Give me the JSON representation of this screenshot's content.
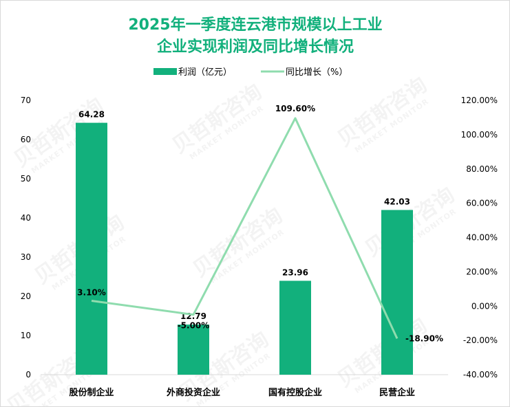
{
  "chart_data": {
    "type": "bar",
    "title_lines": [
      "2025年一季度连云港市规模以上工业",
      "企业实现利润及同比增长情况"
    ],
    "categories": [
      "股份制企业",
      "外商投资企业",
      "国有控股企业",
      "民营企业"
    ],
    "series": [
      {
        "name": "利润（亿元）",
        "type": "bar",
        "axis": "left",
        "values": [
          64.28,
          12.79,
          23.96,
          42.03
        ],
        "labels": [
          "64.28",
          "12.79",
          "23.96",
          "42.03"
        ]
      },
      {
        "name": "同比增长（%）",
        "type": "line",
        "axis": "right",
        "values": [
          3.1,
          -5.0,
          109.6,
          -18.9
        ],
        "labels": [
          "3.10%",
          "-5.00%",
          "109.60%",
          "-18.90%"
        ]
      }
    ],
    "y_left": {
      "min": 0,
      "max": 70,
      "step": 10,
      "ticks": [
        "0",
        "10",
        "20",
        "30",
        "40",
        "50",
        "60",
        "70"
      ]
    },
    "y_right": {
      "min": -40,
      "max": 120,
      "step": 20,
      "ticks": [
        "-40.00%",
        "-20.00%",
        "0.00%",
        "20.00%",
        "40.00%",
        "60.00%",
        "80.00%",
        "100.00%",
        "120.00%"
      ]
    },
    "legend_position": "top",
    "grid": false,
    "colors": {
      "bar": "#12b07c",
      "line": "#8fdcae",
      "title": "#12b07c"
    }
  },
  "watermark": {
    "name": "贝哲斯咨询",
    "sub": "MARKET MONITOR"
  }
}
